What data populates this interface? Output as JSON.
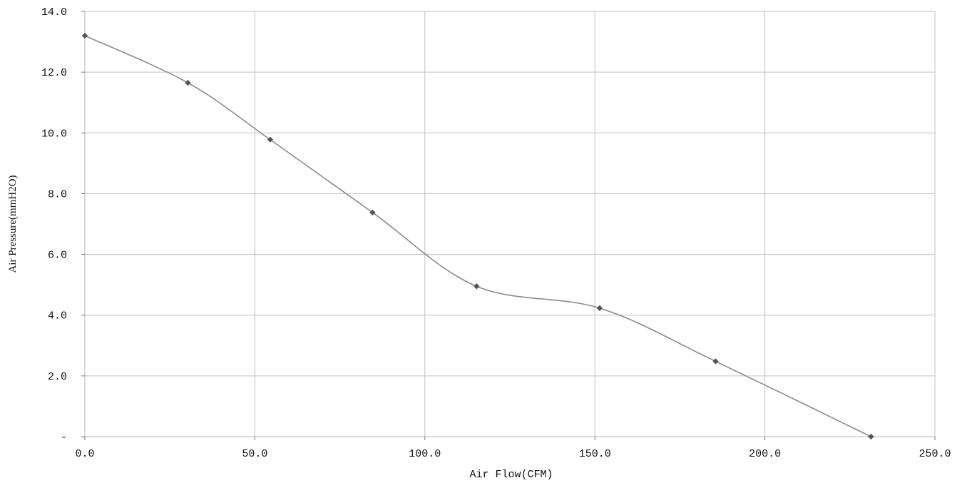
{
  "chart_data": {
    "type": "line",
    "x": [
      0,
      30.3,
      54.5,
      84.6,
      115.2,
      151.4,
      185.5,
      231.2
    ],
    "series": [
      {
        "values": [
          13.2,
          11.65,
          9.78,
          7.38,
          4.95,
          4.23,
          2.48,
          0
        ]
      }
    ],
    "xlabel": "Air Flow(CFM)",
    "ylabel": "Air Pressure(mmH2O)",
    "xlim": [
      0,
      250
    ],
    "ylim": [
      0,
      14
    ],
    "x_ticks": [
      0,
      50,
      100,
      150,
      200,
      250
    ],
    "x_tick_labels": [
      "0.0",
      "50.0",
      "100.0",
      "150.0",
      "200.0",
      "250.0"
    ],
    "y_ticks": [
      0,
      2,
      4,
      6,
      8,
      10,
      12,
      14
    ],
    "y_tick_labels": [
      "-",
      "2.0",
      "4.0",
      "6.0",
      "8.0",
      "10.0",
      "12.0",
      "14.0"
    ],
    "grid": true,
    "line_style": "smooth",
    "marker": "diamond",
    "colors": {
      "line": "#8a8a8a",
      "marker": "#555555",
      "grid": "#c0c0c0",
      "text": "#111111"
    }
  }
}
